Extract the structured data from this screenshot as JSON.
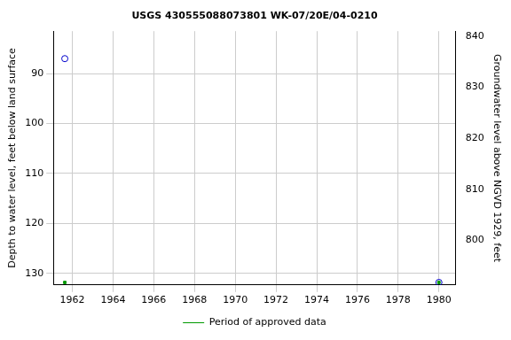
{
  "chart_data": {
    "type": "scatter",
    "title": "USGS 430555088073801 WK-07/20E/04-0210",
    "x_label": "",
    "y_label": "Depth to water level, feet below land surface",
    "y2_label": "Groundwater level above NGVD 1929, feet",
    "series": [
      {
        "color": "#0000cc",
        "marker": "circle",
        "x": [
          1961.63,
          1980.0
        ],
        "values": [
          87.0,
          131.8
        ]
      },
      {
        "name": "Period of approved data",
        "color": "#009900",
        "marker": "square",
        "x": [
          1961.63,
          1980.0
        ],
        "values": [
          131.8,
          131.8
        ]
      }
    ],
    "xlim": [
      1961.07,
      1980.83
    ],
    "xticks": [
      1962,
      1964,
      1966,
      1968,
      1970,
      1972,
      1974,
      1976,
      1978,
      1980
    ],
    "ylim": [
      132.3,
      81.5
    ],
    "yticks": [
      90,
      100,
      110,
      120,
      130
    ],
    "y2lim": [
      791.3,
      841.0
    ],
    "y2ticks": [
      800,
      810,
      820,
      830,
      840
    ],
    "grid": true,
    "legend": "bottom"
  }
}
